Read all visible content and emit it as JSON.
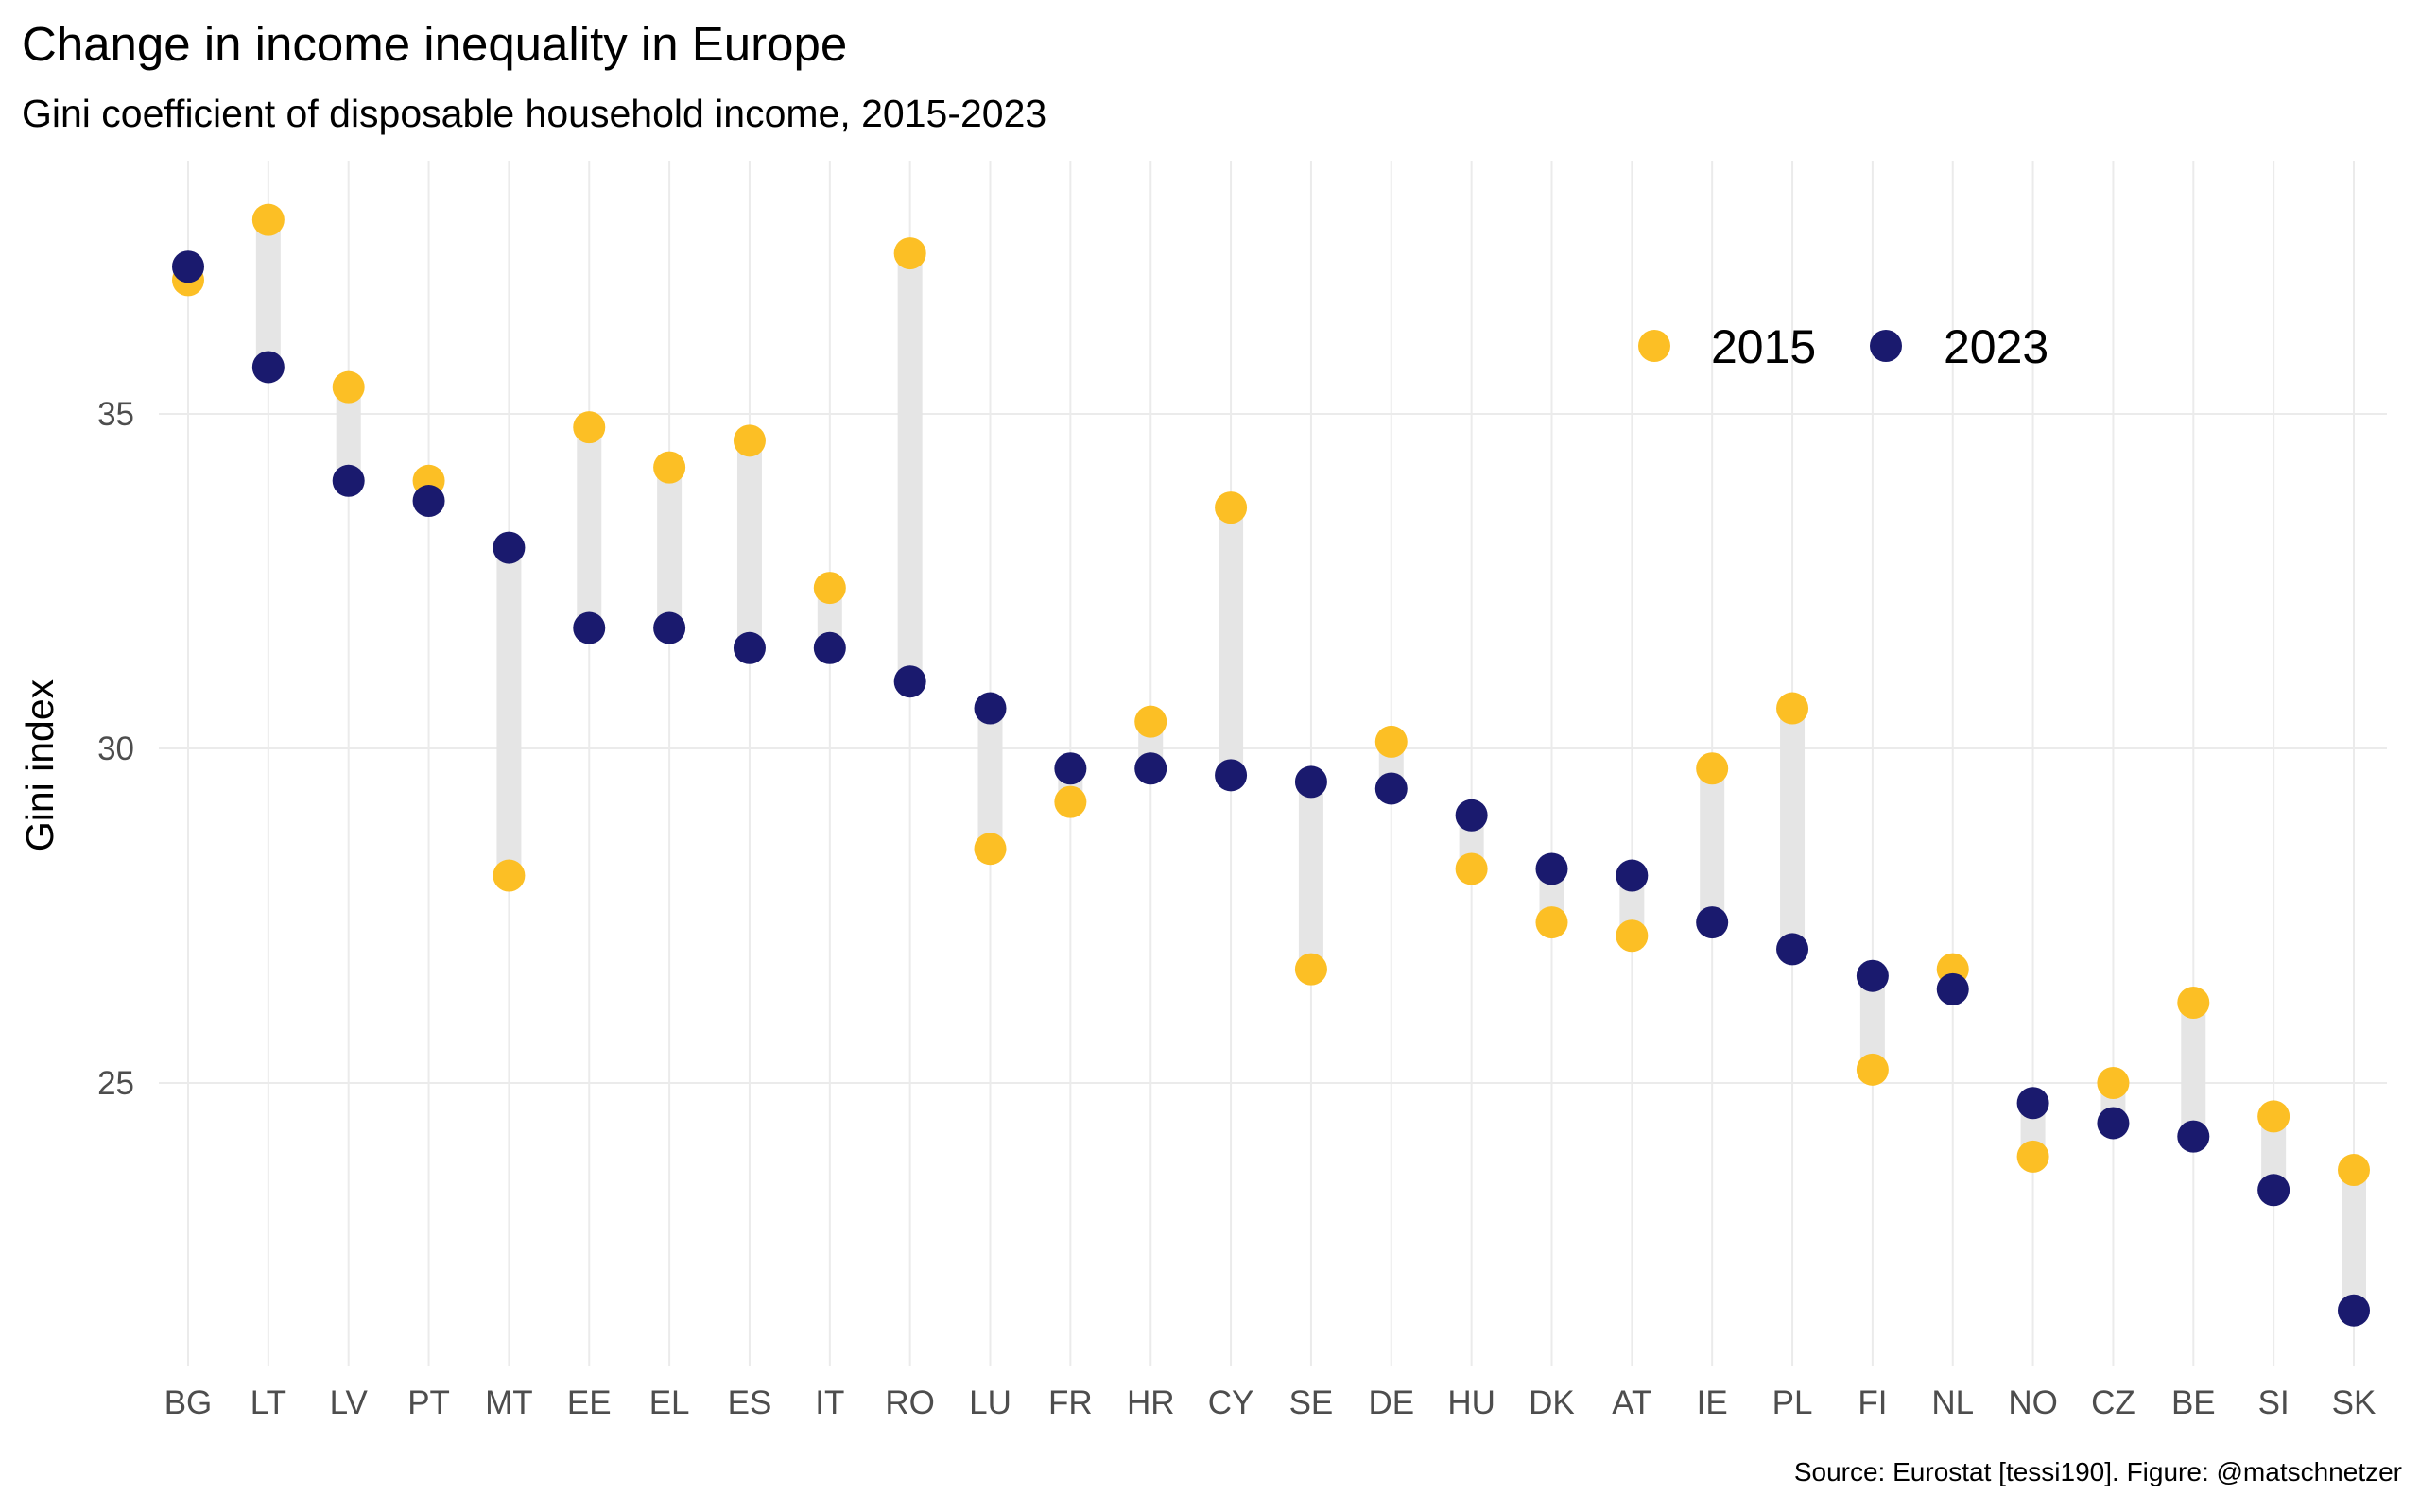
{
  "chart_data": {
    "type": "scatter",
    "subtype": "dumbbell",
    "title": "Change in income inequality in Europe",
    "subtitle": "Gini coefficient of disposable household income, 2015-2023",
    "caption": "Source: Eurostat [tessi190]. Figure: @matschnetzer",
    "xlabel": "",
    "ylabel": "Gini index",
    "ylim": [
      20.8,
      38.4
    ],
    "yticks": [
      25,
      30,
      35
    ],
    "grid": true,
    "legend_position": "top-right",
    "categories": [
      "BG",
      "LT",
      "LV",
      "PT",
      "MT",
      "EE",
      "EL",
      "ES",
      "IT",
      "RO",
      "LU",
      "FR",
      "HR",
      "CY",
      "SE",
      "DE",
      "HU",
      "DK",
      "AT",
      "IE",
      "PL",
      "FI",
      "NL",
      "NO",
      "CZ",
      "BE",
      "SI",
      "SK"
    ],
    "series": [
      {
        "name": "2015",
        "color": "#fcbf25",
        "values": [
          37.0,
          37.9,
          35.4,
          34.0,
          28.1,
          34.8,
          34.2,
          34.6,
          32.4,
          37.4,
          28.5,
          29.2,
          30.4,
          33.6,
          26.7,
          30.1,
          28.2,
          27.4,
          27.2,
          29.7,
          30.6,
          25.2,
          26.7,
          23.9,
          25.0,
          26.2,
          24.5,
          23.7
        ]
      },
      {
        "name": "2023",
        "color": "#1a1a6e",
        "values": [
          37.2,
          35.7,
          34.0,
          33.7,
          33.0,
          31.8,
          31.8,
          31.5,
          31.5,
          31.0,
          30.6,
          29.7,
          29.7,
          29.6,
          29.5,
          29.4,
          29.0,
          28.2,
          28.1,
          27.4,
          27.0,
          26.6,
          26.4,
          24.7,
          24.4,
          24.2,
          23.4,
          21.6
        ]
      }
    ],
    "segment_color": "#e5e5e5",
    "grid_color": "#ebebeb"
  }
}
